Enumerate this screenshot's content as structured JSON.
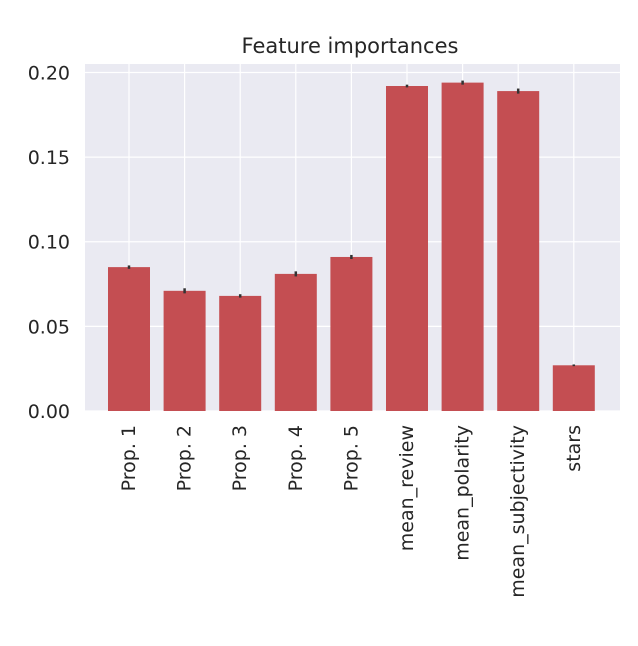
{
  "chart_data": {
    "type": "bar",
    "title": "Feature importances",
    "xlabel": "",
    "ylabel": "",
    "categories": [
      "Prop. 1",
      "Prop. 2",
      "Prop. 3",
      "Prop. 4",
      "Prop. 5",
      "mean_review",
      "mean_polarity",
      "mean_subjectivity",
      "stars"
    ],
    "values": [
      0.085,
      0.071,
      0.068,
      0.081,
      0.091,
      0.192,
      0.194,
      0.189,
      0.027
    ],
    "errors": [
      0.001,
      0.0015,
      0.001,
      0.0015,
      0.0012,
      0.0008,
      0.0012,
      0.0015,
      0.0005
    ],
    "ylim": [
      0,
      0.205
    ],
    "yticks": [
      "0.00",
      "0.05",
      "0.10",
      "0.15",
      "0.20"
    ],
    "ytick_values": [
      0,
      0.05,
      0.1,
      0.15,
      0.2
    ],
    "grid": true,
    "colors": {
      "bar": "#c44e52",
      "error": "#333333",
      "background": "#eaeaf2",
      "grid": "#ffffff",
      "text": "#262626"
    }
  }
}
